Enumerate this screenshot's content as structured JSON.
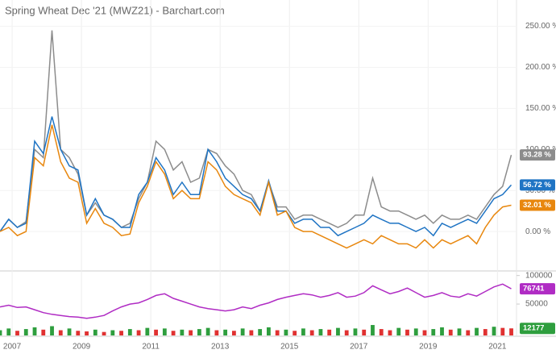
{
  "chart_data": [
    {
      "type": "line",
      "title": "Spring Wheat Dec '21 (MWZ21) - Barchart.com",
      "x": [
        2006.65,
        2006.9,
        2007.15,
        2007.4,
        2007.65,
        2007.9,
        2008.15,
        2008.4,
        2008.65,
        2008.9,
        2009.15,
        2009.4,
        2009.65,
        2009.9,
        2010.15,
        2010.4,
        2010.65,
        2010.9,
        2011.15,
        2011.4,
        2011.65,
        2011.9,
        2012.15,
        2012.4,
        2012.65,
        2012.9,
        2013.15,
        2013.4,
        2013.65,
        2013.9,
        2014.15,
        2014.4,
        2014.65,
        2014.9,
        2015.15,
        2015.4,
        2015.65,
        2015.9,
        2016.15,
        2016.4,
        2016.65,
        2016.9,
        2017.15,
        2017.4,
        2017.65,
        2017.9,
        2018.15,
        2018.4,
        2018.65,
        2018.9,
        2019.15,
        2019.4,
        2019.65,
        2019.9,
        2020.15,
        2020.4,
        2020.65,
        2020.9,
        2021.15,
        2021.4
      ],
      "series": [
        {
          "color": "#8c8c8c",
          "values": [
            0,
            15,
            5,
            12,
            100,
            90,
            245,
            100,
            90,
            70,
            20,
            35,
            20,
            15,
            5,
            10,
            40,
            60,
            110,
            100,
            75,
            85,
            60,
            65,
            100,
            95,
            80,
            70,
            50,
            45,
            25,
            60,
            30,
            30,
            15,
            20,
            20,
            15,
            10,
            5,
            10,
            20,
            20,
            65,
            30,
            25,
            25,
            20,
            15,
            20,
            10,
            20,
            15,
            15,
            20,
            15,
            30,
            45,
            55,
            93.28
          ],
          "value_labels": [
            null,
            null,
            null,
            null,
            null,
            null,
            null,
            null,
            null,
            null,
            null,
            null,
            null,
            null,
            null,
            null,
            null,
            null,
            null,
            null,
            null,
            null,
            null,
            null,
            null,
            null,
            null,
            null,
            null,
            null,
            null,
            null,
            null,
            null,
            null,
            null,
            null,
            null,
            null,
            null,
            null,
            null,
            null,
            null,
            null,
            null,
            null,
            null,
            null,
            null,
            null,
            null,
            null,
            null,
            null,
            null,
            null,
            null,
            null,
            "93.28 %"
          ]
        },
        {
          "color": "#1f74c4",
          "values": [
            0,
            15,
            5,
            10,
            110,
            95,
            140,
            100,
            80,
            75,
            20,
            40,
            20,
            15,
            5,
            5,
            45,
            60,
            90,
            75,
            45,
            60,
            45,
            45,
            100,
            85,
            65,
            55,
            45,
            40,
            25,
            62,
            25,
            25,
            10,
            15,
            15,
            5,
            5,
            -5,
            0,
            5,
            10,
            20,
            15,
            10,
            10,
            5,
            0,
            5,
            -5,
            10,
            5,
            10,
            15,
            10,
            25,
            40,
            45,
            56.72
          ],
          "value_labels": [
            null,
            null,
            null,
            null,
            null,
            null,
            null,
            null,
            null,
            null,
            null,
            null,
            null,
            null,
            null,
            null,
            null,
            null,
            null,
            null,
            null,
            null,
            null,
            null,
            null,
            null,
            null,
            null,
            null,
            null,
            null,
            null,
            null,
            null,
            null,
            null,
            null,
            null,
            null,
            null,
            null,
            null,
            null,
            null,
            null,
            null,
            null,
            null,
            null,
            null,
            null,
            null,
            null,
            null,
            null,
            null,
            null,
            null,
            null,
            "56.72 %"
          ]
        },
        {
          "color": "#e8870e",
          "values": [
            0,
            5,
            -5,
            0,
            90,
            80,
            130,
            85,
            65,
            60,
            10,
            28,
            10,
            5,
            -5,
            -3,
            35,
            55,
            85,
            70,
            40,
            50,
            40,
            40,
            85,
            75,
            55,
            45,
            40,
            35,
            20,
            60,
            20,
            25,
            5,
            0,
            0,
            -5,
            -10,
            -15,
            -20,
            -15,
            -10,
            -15,
            -5,
            -10,
            -15,
            -15,
            -20,
            -10,
            -20,
            -10,
            -15,
            -10,
            -5,
            -15,
            5,
            20,
            30,
            32.01
          ],
          "value_labels": [
            null,
            null,
            null,
            null,
            null,
            null,
            null,
            null,
            null,
            null,
            null,
            null,
            null,
            null,
            null,
            null,
            null,
            null,
            null,
            null,
            null,
            null,
            null,
            null,
            null,
            null,
            null,
            null,
            null,
            null,
            null,
            null,
            null,
            null,
            null,
            null,
            null,
            null,
            null,
            null,
            null,
            null,
            null,
            null,
            null,
            null,
            null,
            null,
            null,
            null,
            null,
            null,
            null,
            null,
            null,
            null,
            null,
            null,
            null,
            "32.01 %"
          ]
        }
      ],
      "xlim": [
        2006.65,
        2021.55
      ],
      "xticks": [
        2007,
        2009,
        2011,
        2013,
        2015,
        2017,
        2019,
        2021
      ],
      "ylim": [
        -48,
        282
      ],
      "yticks": [
        {
          "value": 0,
          "label": "0.00 %"
        },
        {
          "value": 50,
          "label": "50.00 %"
        },
        {
          "value": 100,
          "label": "100.00 %"
        },
        {
          "value": 150,
          "label": "150.00 %"
        },
        {
          "value": 200,
          "label": "200.00 %"
        },
        {
          "value": 250,
          "label": "250.00 %"
        }
      ],
      "grid": true
    },
    {
      "type": "line",
      "x": [
        2006.65,
        2006.9,
        2007.15,
        2007.4,
        2007.65,
        2007.9,
        2008.15,
        2008.4,
        2008.65,
        2008.9,
        2009.15,
        2009.4,
        2009.65,
        2009.9,
        2010.15,
        2010.4,
        2010.65,
        2010.9,
        2011.15,
        2011.4,
        2011.65,
        2011.9,
        2012.15,
        2012.4,
        2012.65,
        2012.9,
        2013.15,
        2013.4,
        2013.65,
        2013.9,
        2014.15,
        2014.4,
        2014.65,
        2014.9,
        2015.15,
        2015.4,
        2015.65,
        2015.9,
        2016.15,
        2016.4,
        2016.65,
        2016.9,
        2017.15,
        2017.4,
        2017.65,
        2017.9,
        2018.15,
        2018.4,
        2018.65,
        2018.9,
        2019.15,
        2019.4,
        2019.65,
        2019.9,
        2020.15,
        2020.4,
        2020.65,
        2020.9,
        2021.15,
        2021.4
      ],
      "series": [
        {
          "color": "#b02cc4",
          "values": [
            45000,
            48000,
            44000,
            45000,
            40000,
            35000,
            32000,
            30000,
            28000,
            27000,
            25000,
            27000,
            30000,
            38000,
            45000,
            50000,
            52000,
            58000,
            65000,
            68000,
            60000,
            55000,
            50000,
            45000,
            42000,
            40000,
            38000,
            40000,
            45000,
            42000,
            48000,
            52000,
            58000,
            62000,
            65000,
            68000,
            66000,
            62000,
            65000,
            70000,
            62000,
            64000,
            70000,
            82000,
            75000,
            68000,
            72000,
            78000,
            70000,
            62000,
            65000,
            70000,
            64000,
            62000,
            68000,
            64000,
            72000,
            80000,
            85000,
            76741
          ]
        }
      ],
      "xlim": [
        2006.65,
        2021.55
      ],
      "ylim": [
        -5000,
        108000
      ],
      "yticks": [
        50000,
        100000
      ]
    },
    {
      "type": "bar",
      "x": [
        2006.65,
        2006.9,
        2007.15,
        2007.4,
        2007.65,
        2007.9,
        2008.15,
        2008.4,
        2008.65,
        2008.9,
        2009.15,
        2009.4,
        2009.65,
        2009.9,
        2010.15,
        2010.4,
        2010.65,
        2010.9,
        2011.15,
        2011.4,
        2011.65,
        2011.9,
        2012.15,
        2012.4,
        2012.65,
        2012.9,
        2013.15,
        2013.4,
        2013.65,
        2013.9,
        2014.15,
        2014.4,
        2014.65,
        2014.9,
        2015.15,
        2015.4,
        2015.65,
        2015.9,
        2016.15,
        2016.4,
        2016.65,
        2016.9,
        2017.15,
        2017.4,
        2017.65,
        2017.9,
        2018.15,
        2018.4,
        2018.65,
        2018.9,
        2019.15,
        2019.4,
        2019.65,
        2019.9,
        2020.15,
        2020.4,
        2020.65,
        2020.9,
        2021.15,
        2021.4
      ],
      "series": [
        {
          "color": "#2e9e3e",
          "values": [
            9000,
            12000,
            8000,
            11000,
            14000,
            10000,
            16000,
            9000,
            12000,
            8000,
            7000,
            10000,
            6000,
            9000,
            8000,
            11000,
            9000,
            13000,
            10000,
            12000,
            8000,
            10000,
            9000,
            11000,
            13000,
            9000,
            10000,
            8000,
            12000,
            9000,
            11000,
            14000,
            9000,
            10000,
            8000,
            12000,
            9000,
            11000,
            10000,
            13000,
            9000,
            12000,
            10000,
            18000,
            11000,
            9000,
            13000,
            10000,
            12000,
            9000,
            11000,
            14000,
            10000,
            12000,
            9000,
            13000,
            11000,
            15000,
            13000,
            12177
          ]
        }
      ],
      "down_color": "#e03131",
      "xlim": [
        2006.65,
        2021.55
      ],
      "ylim": [
        0,
        25000
      ]
    }
  ]
}
